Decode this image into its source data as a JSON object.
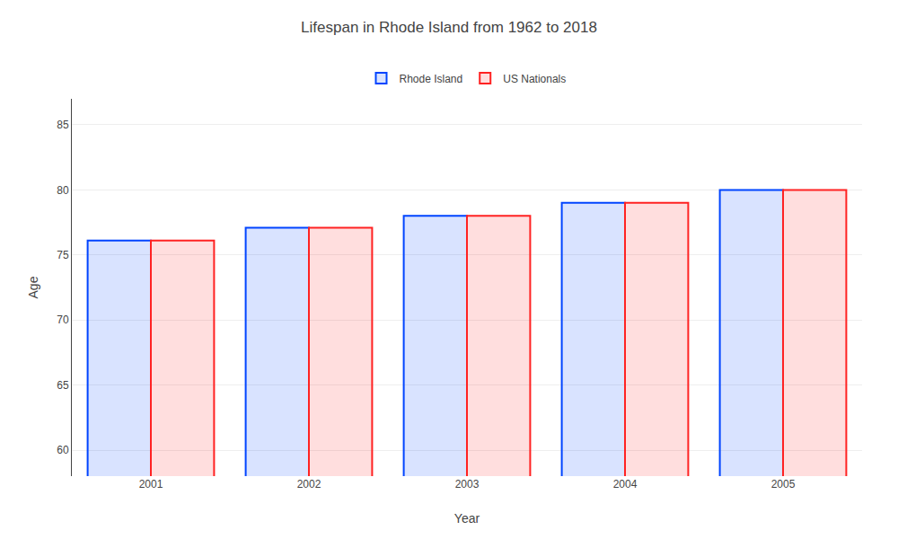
{
  "chart_data": {
    "type": "bar",
    "title": "Lifespan in Rhode Island from 1962 to 2018",
    "x_label": "Year",
    "y_label": "Age",
    "categories": [
      "2001",
      "2002",
      "2003",
      "2004",
      "2005"
    ],
    "series": [
      {
        "name": "Rhode Island",
        "color": "#0044ff",
        "values": [
          76.1,
          77.1,
          78.0,
          79.0,
          80.0
        ]
      },
      {
        "name": "US Nationals",
        "color": "#ff2222",
        "values": [
          76.1,
          77.1,
          78.0,
          79.0,
          80.0
        ]
      }
    ],
    "ylim": [
      58,
      87
    ],
    "yticks": [
      60,
      65,
      70,
      75,
      80,
      85
    ],
    "grid": true,
    "legend": "top"
  }
}
